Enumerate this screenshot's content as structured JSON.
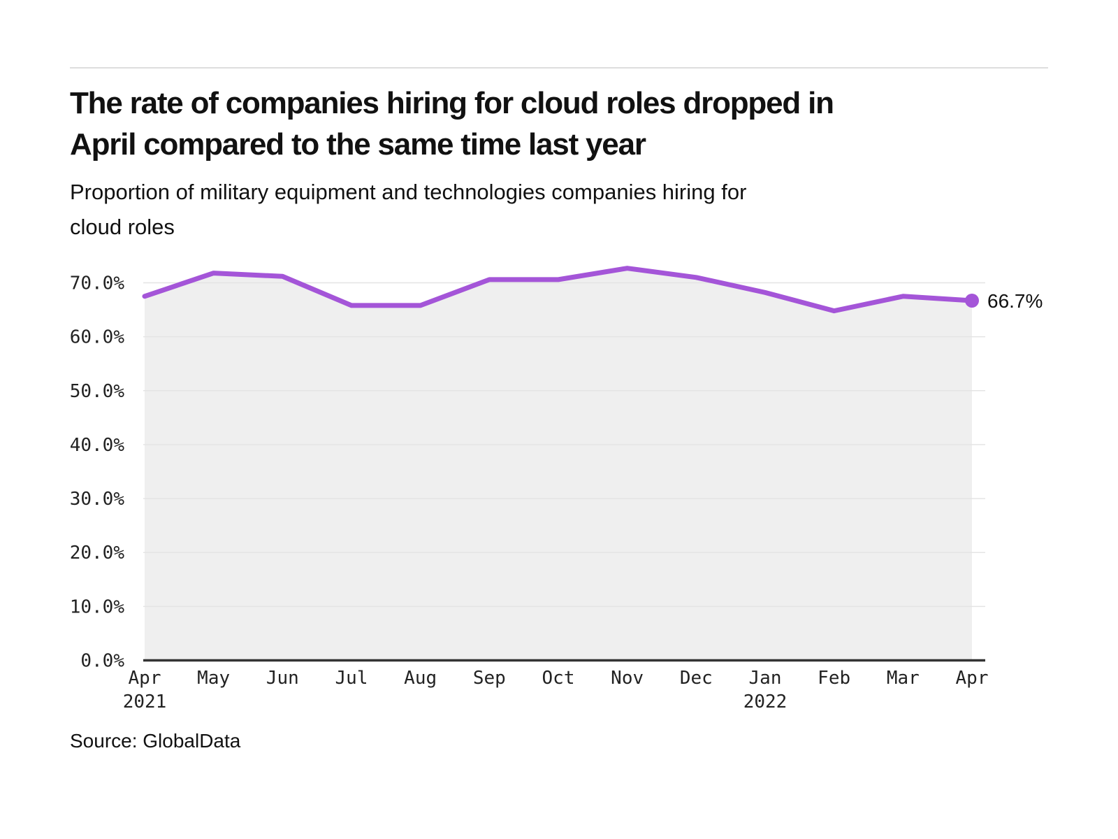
{
  "header": {
    "title_line1": "The rate of companies hiring for cloud roles dropped in",
    "title_line2": "April compared to the same time last year",
    "subtitle_line1": "Proportion of military equipment and technologies companies hiring for",
    "subtitle_line2": "cloud roles"
  },
  "source": "Source: GlobalData",
  "colors": {
    "line": "#a455d8",
    "marker": "#a455d8",
    "area_fill": "#efefef",
    "grid": "#e4e4e4",
    "axis": "#333333",
    "text": "#111111",
    "divider": "#dddddd"
  },
  "chart_data": {
    "type": "line",
    "title": "The rate of companies hiring for cloud roles dropped in April compared to the same time last year",
    "subtitle": "Proportion of military equipment and technologies companies hiring for cloud roles",
    "categories": [
      "Apr",
      "May",
      "Jun",
      "Jul",
      "Aug",
      "Sep",
      "Oct",
      "Nov",
      "Dec",
      "Jan",
      "Feb",
      "Mar",
      "Apr"
    ],
    "year_markers": [
      {
        "index": 0,
        "year": "2021"
      },
      {
        "index": 9,
        "year": "2022"
      }
    ],
    "values": [
      67.5,
      71.8,
      71.2,
      65.8,
      65.8,
      70.6,
      70.6,
      72.7,
      71.0,
      68.2,
      64.8,
      67.5,
      66.7
    ],
    "unit": "%",
    "ylim": [
      0,
      75
    ],
    "yticks": [
      0,
      10,
      20,
      30,
      40,
      50,
      60,
      70
    ],
    "ytick_labels": [
      "0.0%",
      "10.0%",
      "20.0%",
      "30.0%",
      "40.0%",
      "50.0%",
      "60.0%",
      "70.0%"
    ],
    "end_label": "66.7%",
    "grid": "horizontal-only",
    "legend": "none"
  }
}
